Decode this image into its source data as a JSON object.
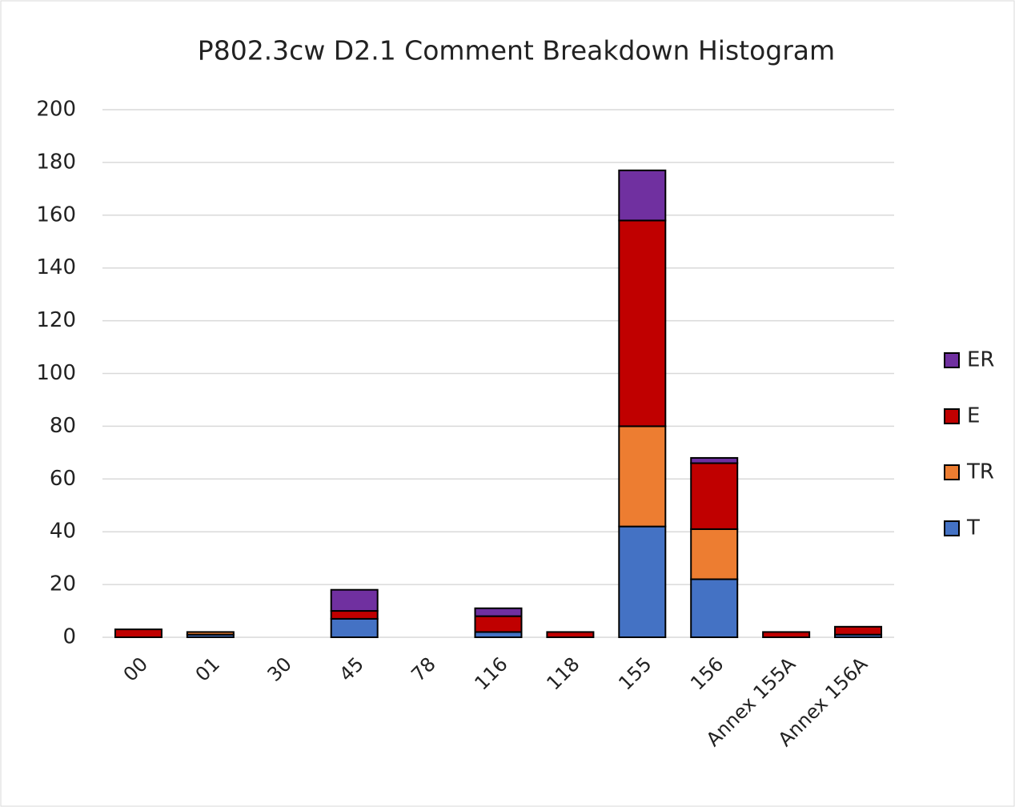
{
  "chart_data": {
    "type": "stacked_bar",
    "title": "P802.3cw D2.1 Comment Breakdown Histogram",
    "categories": [
      "00",
      "01",
      "30",
      "45",
      "78",
      "116",
      "118",
      "155",
      "156",
      "Annex 155A",
      "Annex 156A"
    ],
    "series": [
      {
        "name": "T",
        "color": "#4472c4",
        "values": [
          0,
          1,
          0,
          7,
          0,
          2,
          0,
          42,
          22,
          0,
          1
        ]
      },
      {
        "name": "TR",
        "color": "#ed7d31",
        "values": [
          0,
          1,
          0,
          0,
          0,
          0,
          0,
          38,
          19,
          0,
          0
        ]
      },
      {
        "name": "E",
        "color": "#c00000",
        "values": [
          3,
          0,
          0,
          3,
          0,
          6,
          2,
          78,
          25,
          2,
          3
        ]
      },
      {
        "name": "ER",
        "color": "#7030a0",
        "values": [
          0,
          0,
          0,
          8,
          0,
          3,
          0,
          19,
          2,
          0,
          0
        ]
      }
    ],
    "ylim": [
      0,
      200
    ],
    "yticks": [
      0,
      20,
      40,
      60,
      80,
      100,
      120,
      140,
      160,
      180,
      200
    ],
    "grid": true,
    "legend": "right"
  }
}
